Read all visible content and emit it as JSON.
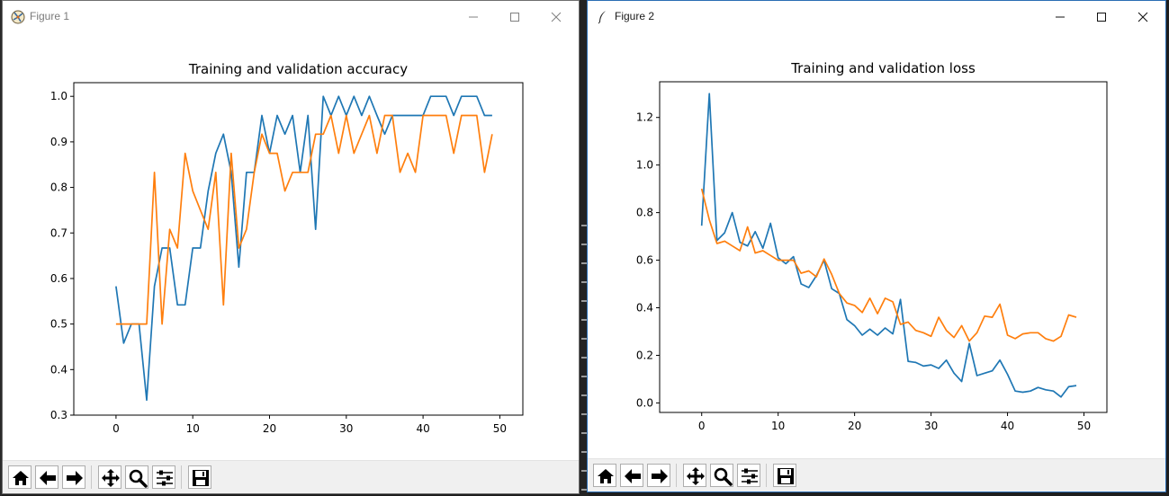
{
  "windows": [
    {
      "title": "Figure 1",
      "chart_data": {
        "type": "line",
        "title": "Training and validation accuracy",
        "xlabel": "",
        "ylabel": "",
        "xlim": [
          -5.5,
          53
        ],
        "ylim": [
          0.3,
          1.03
        ],
        "xticks": [
          "0",
          "10",
          "20",
          "30",
          "40",
          "50"
        ],
        "yticks": [
          "0.3",
          "0.4",
          "0.5",
          "0.6",
          "0.7",
          "0.8",
          "0.9",
          "1.0"
        ],
        "grid": false,
        "series": [
          {
            "color": "#1f77b4",
            "values": [
              0.583,
              0.458,
              0.5,
              0.5,
              0.333,
              0.583,
              0.667,
              0.667,
              0.542,
              0.542,
              0.667,
              0.667,
              0.792,
              0.875,
              0.917,
              0.833,
              0.625,
              0.833,
              0.833,
              0.958,
              0.875,
              0.958,
              0.917,
              0.958,
              0.833,
              0.958,
              0.708,
              1.0,
              0.958,
              1.0,
              0.958,
              1.0,
              0.958,
              1.0,
              0.958,
              0.917,
              0.958,
              0.958,
              0.958,
              0.958,
              0.958,
              1.0,
              1.0,
              1.0,
              0.958,
              1.0,
              1.0,
              1.0,
              0.958,
              0.958
            ]
          },
          {
            "color": "#ff7f0e",
            "values": [
              0.5,
              0.5,
              0.5,
              0.5,
              0.5,
              0.833,
              0.5,
              0.708,
              0.667,
              0.875,
              0.792,
              0.75,
              0.708,
              0.833,
              0.542,
              0.875,
              0.667,
              0.708,
              0.833,
              0.917,
              0.875,
              0.875,
              0.792,
              0.833,
              0.833,
              0.833,
              0.917,
              0.917,
              0.958,
              0.875,
              0.958,
              0.875,
              0.917,
              0.958,
              0.875,
              0.958,
              0.958,
              0.833,
              0.875,
              0.833,
              0.958,
              0.958,
              0.958,
              0.958,
              0.875,
              0.958,
              0.958,
              0.958,
              0.833,
              0.917
            ]
          }
        ]
      }
    },
    {
      "title": "Figure 2",
      "chart_data": {
        "type": "line",
        "title": "Training and validation loss",
        "xlabel": "",
        "ylabel": "",
        "xlim": [
          -5.5,
          53
        ],
        "ylim": [
          -0.04,
          1.35
        ],
        "xticks": [
          "0",
          "10",
          "20",
          "30",
          "40",
          "50"
        ],
        "yticks": [
          "0.0",
          "0.2",
          "0.4",
          "0.6",
          "0.8",
          "1.0",
          "1.2"
        ],
        "grid": false,
        "series": [
          {
            "color": "#1f77b4",
            "values": [
              0.745,
              1.3,
              0.683,
              0.715,
              0.8,
              0.675,
              0.66,
              0.72,
              0.65,
              0.755,
              0.61,
              0.585,
              0.615,
              0.5,
              0.485,
              0.535,
              0.6,
              0.48,
              0.46,
              0.35,
              0.325,
              0.285,
              0.31,
              0.285,
              0.315,
              0.29,
              0.435,
              0.175,
              0.17,
              0.155,
              0.16,
              0.145,
              0.18,
              0.125,
              0.09,
              0.25,
              0.115,
              0.125,
              0.135,
              0.18,
              0.12,
              0.05,
              0.045,
              0.05,
              0.065,
              0.055,
              0.05,
              0.025,
              0.068,
              0.073
            ]
          },
          {
            "color": "#ff7f0e",
            "values": [
              0.9,
              0.77,
              0.67,
              0.68,
              0.66,
              0.64,
              0.74,
              0.63,
              0.64,
              0.62,
              0.6,
              0.6,
              0.6,
              0.545,
              0.555,
              0.53,
              0.605,
              0.54,
              0.46,
              0.42,
              0.41,
              0.38,
              0.44,
              0.375,
              0.44,
              0.425,
              0.33,
              0.34,
              0.305,
              0.295,
              0.28,
              0.36,
              0.305,
              0.275,
              0.325,
              0.26,
              0.295,
              0.365,
              0.36,
              0.415,
              0.285,
              0.27,
              0.29,
              0.295,
              0.295,
              0.27,
              0.26,
              0.28,
              0.37,
              0.36
            ]
          }
        ]
      }
    }
  ],
  "toolbar": {
    "buttons": [
      "home-icon",
      "back-arrow-icon",
      "forward-arrow-icon",
      "pan-icon",
      "zoom-icon",
      "configure-subplots-icon",
      "save-icon"
    ]
  }
}
